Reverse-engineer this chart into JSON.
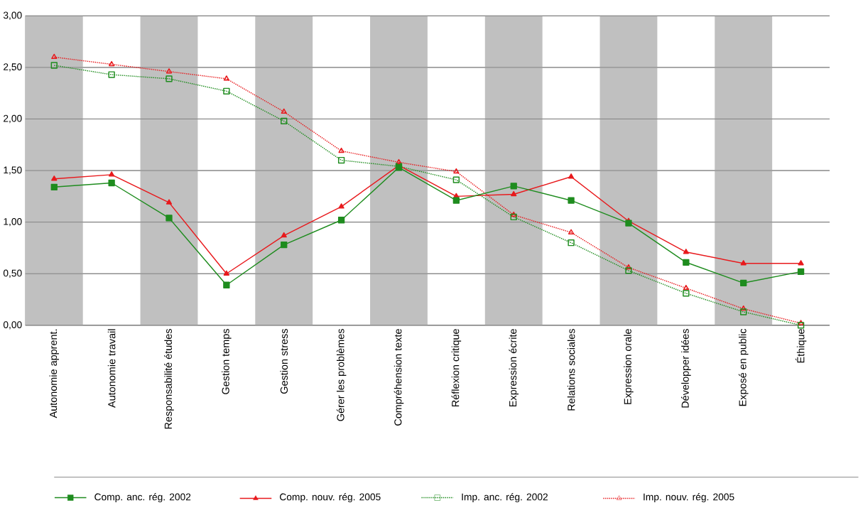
{
  "chart_data": {
    "type": "line",
    "categories": [
      "Autonomie apprent.",
      "Autonomie travail",
      "Responsabilité études",
      "Gestion temps",
      "Gestion stress",
      "Gérer les problèmes",
      "Compréhension texte",
      "Réflexion critique",
      "Expression écrite",
      "Relations sociales",
      "Expression orale",
      "Développer idées",
      "Exposé en public",
      "Éthique"
    ],
    "series": [
      {
        "name": "Comp. anc. rég. 2002",
        "color": "#1e8c1e",
        "marker": "square",
        "line_style": "solid",
        "values": [
          1.34,
          1.38,
          1.04,
          0.39,
          0.78,
          1.02,
          1.53,
          1.21,
          1.35,
          1.21,
          0.99,
          0.61,
          0.41,
          0.52
        ]
      },
      {
        "name": "Comp. nouv. rég. 2005",
        "color": "#e8191c",
        "marker": "triangle",
        "line_style": "solid",
        "values": [
          1.42,
          1.46,
          1.19,
          0.5,
          0.87,
          1.15,
          1.55,
          1.25,
          1.27,
          1.44,
          1.01,
          0.71,
          0.6,
          0.6
        ]
      },
      {
        "name": "Imp. anc. rég. 2002",
        "color": "#1e8c1e",
        "marker": "square",
        "line_style": "dotted",
        "values": [
          2.52,
          2.43,
          2.39,
          2.27,
          1.98,
          1.6,
          1.54,
          1.41,
          1.05,
          0.8,
          0.53,
          0.31,
          0.13,
          0.0
        ]
      },
      {
        "name": "Imp. nouv. rég. 2005",
        "color": "#e8191c",
        "marker": "triangle",
        "line_style": "dotted",
        "values": [
          2.6,
          2.53,
          2.46,
          2.39,
          2.07,
          1.69,
          1.58,
          1.49,
          1.07,
          0.9,
          0.56,
          0.36,
          0.16,
          0.02
        ]
      }
    ],
    "ylim": [
      0,
      3
    ],
    "yticks": [
      {
        "value": 0,
        "label": "0,00"
      },
      {
        "value": 0.5,
        "label": "0,50"
      },
      {
        "value": 1,
        "label": "1,00"
      },
      {
        "value": 1.5,
        "label": "1,50"
      },
      {
        "value": 2,
        "label": "2,00"
      },
      {
        "value": 2.5,
        "label": "2,50"
      },
      {
        "value": 3,
        "label": "3,00"
      }
    ],
    "bands": [
      {
        "axis": "x",
        "from": "Autonomie apprent.",
        "to": "Autonomie apprent.",
        "color": "#c0c0c0"
      },
      {
        "axis": "x",
        "from": "Responsabilité études",
        "to": "Responsabilité études",
        "color": "#c0c0c0"
      },
      {
        "axis": "x",
        "from": "Gestion stress",
        "to": "Gestion stress",
        "color": "#c0c0c0"
      },
      {
        "axis": "x",
        "from": "Compréhension texte",
        "to": "Compréhension texte",
        "color": "#c0c0c0"
      },
      {
        "axis": "x",
        "from": "Expression écrite",
        "to": "Expression écrite",
        "color": "#c0c0c0"
      },
      {
        "axis": "x",
        "from": "Expression orale",
        "to": "Expression orale",
        "color": "#c0c0c0"
      },
      {
        "axis": "x",
        "from": "Exposé en public",
        "to": "Exposé en public",
        "color": "#c0c0c0"
      }
    ],
    "grid": "y",
    "legend": "bottom"
  }
}
